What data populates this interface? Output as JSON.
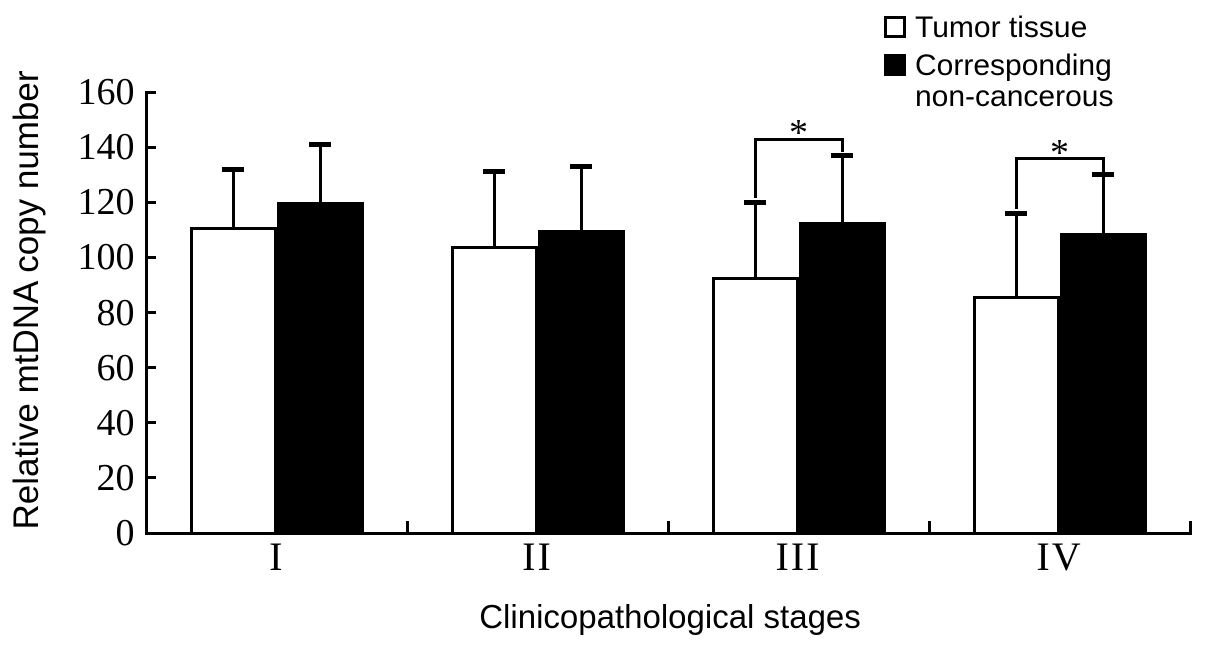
{
  "legend": {
    "items": [
      {
        "label": "Tumor tissue",
        "fill": "#ffffff"
      },
      {
        "label": "Corresponding non-cancerous",
        "label_lines": [
          "Corresponding",
          "non-cancerous"
        ],
        "fill": "#000000"
      }
    ]
  },
  "chart_data": {
    "type": "bar",
    "title": "",
    "categories": [
      "I",
      "II",
      "III",
      "IV"
    ],
    "series": [
      {
        "name": "Tumor tissue",
        "fill": "#ffffff",
        "stroke": "#000000",
        "values": [
          111,
          104,
          93,
          86
        ],
        "errors_plus": [
          21,
          27,
          27,
          30
        ]
      },
      {
        "name": "Corresponding non-cancerous",
        "fill": "#000000",
        "stroke": "#000000",
        "values": [
          120,
          110,
          113,
          109
        ],
        "errors_plus": [
          21,
          23,
          24,
          21
        ]
      }
    ],
    "xlabel": "Clinicopathological stages",
    "ylabel": "Relative mtDNA copy number",
    "ylim": [
      0,
      160
    ],
    "yticks": [
      0,
      20,
      40,
      60,
      80,
      100,
      120,
      140,
      160
    ],
    "grid": false,
    "error_bars": "upper-only",
    "legend_position": "top-right",
    "significance_markers": [
      {
        "category": "III",
        "between": [
          "Tumor tissue",
          "Corresponding non-cancerous"
        ],
        "label": "*"
      },
      {
        "category": "IV",
        "between": [
          "Tumor tissue",
          "Corresponding non-cancerous"
        ],
        "label": "*"
      }
    ],
    "colors": {
      "stroke": "#000000",
      "background": "#ffffff",
      "tumor_fill": "#ffffff",
      "non_cancerous_fill": "#000000"
    }
  }
}
